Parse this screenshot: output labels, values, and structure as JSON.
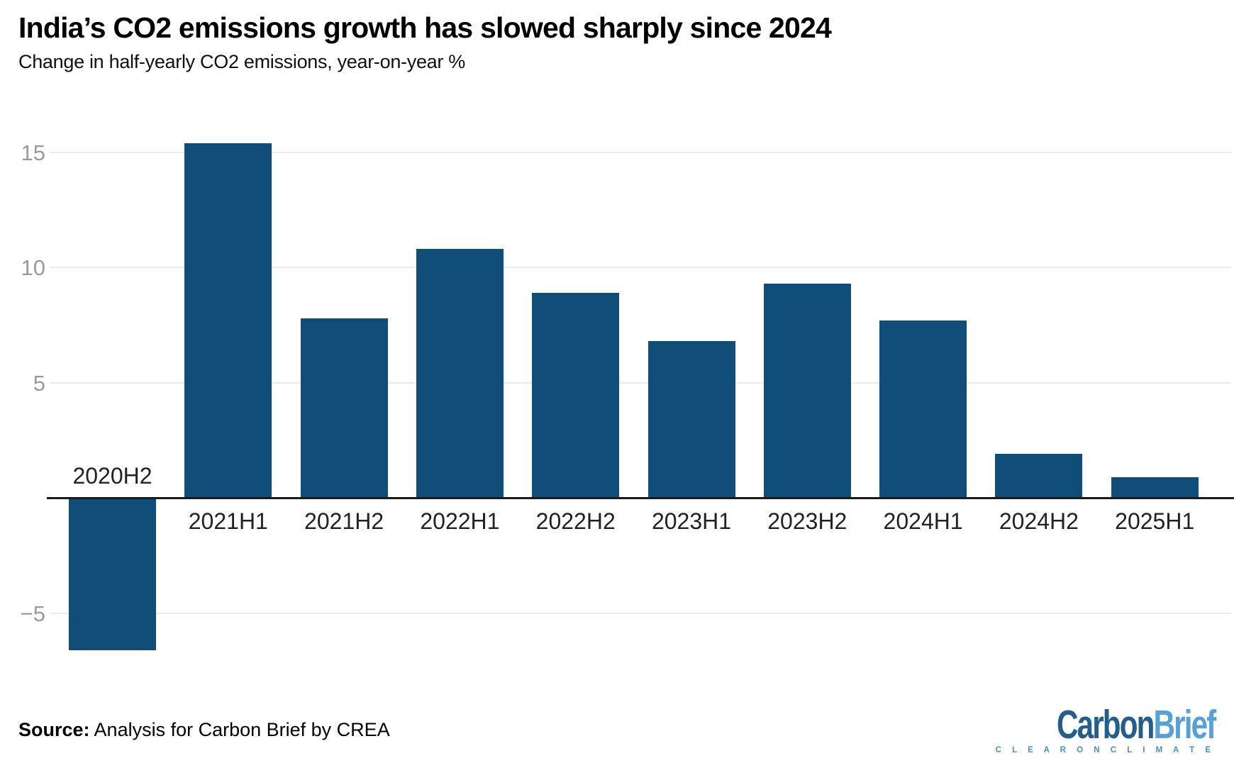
{
  "header": {
    "title": "India’s CO2 emissions growth has slowed sharply since 2024",
    "subtitle": "Change in half-yearly CO2 emissions, year-on-year %"
  },
  "chart_data": {
    "type": "bar",
    "categories": [
      "2020H2",
      "2021H1",
      "2021H2",
      "2022H1",
      "2022H2",
      "2023H1",
      "2023H2",
      "2024H1",
      "2024H2",
      "2025H1"
    ],
    "values": [
      -6.6,
      15.4,
      7.8,
      10.8,
      8.9,
      6.8,
      9.3,
      7.7,
      1.9,
      0.9
    ],
    "title": "India’s CO2 emissions growth has slowed sharply since 2024",
    "subtitle": "Change in half-yearly CO2 emissions, year-on-year %",
    "xlabel": "",
    "ylabel": "",
    "y_ticks": [
      15,
      10,
      5,
      -5
    ],
    "ylim": [
      -7.3,
      16.5
    ],
    "grid": true,
    "legend": false,
    "bar_color": "#104d78"
  },
  "colors": {
    "bar": "#104d78",
    "grid": "#ebebeb",
    "axis": "#1a1a1a",
    "y_tick_text": "#9b9b9b",
    "x_tick_text": "#222222",
    "logo_dark": "#235e8c",
    "logo_light": "#57a0d8",
    "tagline": "#4a90c8"
  },
  "footer": {
    "source_label": "Source:",
    "source_text": " Analysis for Carbon Brief by CREA",
    "logo": {
      "part1": "Carbon",
      "part2": "Brief",
      "tagline": "C L E A R   O N   C L I M A T E"
    }
  }
}
